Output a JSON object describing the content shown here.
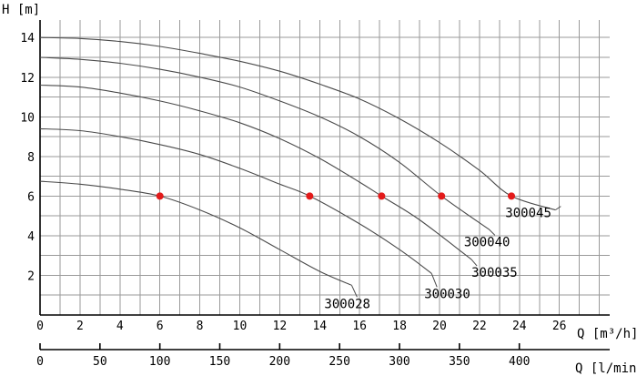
{
  "chart_data": {
    "type": "line",
    "title": "",
    "ylabel": "H [m]",
    "xlabel": "Q [m³/h]",
    "xlabel_secondary": "Q [l/min]",
    "xlim": [
      0,
      28.5
    ],
    "ylim": [
      0,
      15
    ],
    "y_ticks": [
      2,
      4,
      6,
      8,
      10,
      12,
      14
    ],
    "x_ticks": [
      0,
      2,
      4,
      6,
      8,
      10,
      12,
      14,
      16,
      18,
      20,
      22,
      24,
      26
    ],
    "x2_ticks": [
      0,
      50,
      100,
      150,
      200,
      250,
      300,
      350,
      400
    ],
    "grid": true,
    "series": [
      {
        "name": "300028",
        "shut_off_head": 6.75,
        "max_flow": 15.6,
        "x": [
          0,
          2,
          4,
          6,
          8,
          10,
          12,
          14,
          15.6
        ],
        "y": [
          6.75,
          6.6,
          6.35,
          6.0,
          5.3,
          4.4,
          3.3,
          2.2,
          1.5
        ],
        "marker": [
          6.0,
          6.0
        ]
      },
      {
        "name": "300030",
        "shut_off_head": 9.4,
        "max_flow": 19.6,
        "x": [
          0,
          2,
          4,
          6,
          8,
          10,
          12,
          13.5,
          16,
          18,
          19.6
        ],
        "y": [
          9.4,
          9.3,
          9.0,
          8.6,
          8.1,
          7.4,
          6.6,
          6.0,
          4.6,
          3.3,
          2.1
        ],
        "marker": [
          13.5,
          6.0
        ]
      },
      {
        "name": "300035",
        "shut_off_head": 11.6,
        "max_flow": 21.6,
        "x": [
          0,
          2,
          4,
          6,
          8,
          10,
          12,
          14,
          16,
          17.1,
          19,
          21.6
        ],
        "y": [
          11.6,
          11.5,
          11.2,
          10.8,
          10.3,
          9.7,
          8.9,
          7.9,
          6.7,
          6.0,
          4.8,
          2.8
        ],
        "marker": [
          17.1,
          6.0
        ]
      },
      {
        "name": "300040",
        "shut_off_head": 13.0,
        "max_flow": 22.5,
        "x": [
          0,
          2,
          4,
          6,
          8,
          10,
          12,
          14,
          16,
          18,
          20.1,
          22.5
        ],
        "y": [
          13.0,
          12.9,
          12.7,
          12.4,
          12.0,
          11.5,
          10.8,
          10.0,
          9.0,
          7.7,
          6.0,
          4.3
        ],
        "marker": [
          20.1,
          6.0
        ]
      },
      {
        "name": "300045",
        "shut_off_head": 14.0,
        "max_flow": 25.8,
        "x": [
          0,
          2,
          4,
          6,
          8,
          10,
          12,
          14,
          16,
          18,
          20,
          22,
          23.6,
          25.8
        ],
        "y": [
          14.0,
          13.95,
          13.8,
          13.55,
          13.2,
          12.8,
          12.3,
          11.65,
          10.9,
          9.9,
          8.7,
          7.3,
          6.0,
          5.3
        ],
        "marker": [
          23.6,
          6.0
        ]
      }
    ]
  }
}
